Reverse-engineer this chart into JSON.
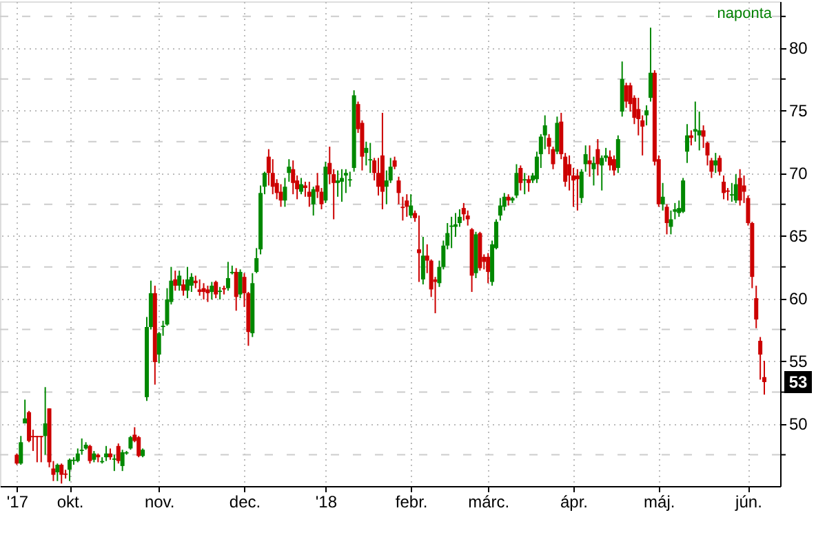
{
  "chart_data": {
    "type": "candlestick",
    "categories": [
      "'17",
      null,
      null,
      null,
      null,
      null,
      null,
      null,
      null,
      null,
      null,
      null,
      null,
      "okt.",
      null,
      null,
      null,
      null,
      null,
      null,
      null,
      null,
      null,
      null,
      null,
      null,
      null,
      null,
      null,
      null,
      null,
      null,
      null,
      null,
      null,
      "nov.",
      null,
      null,
      null,
      null,
      null,
      null,
      null,
      null,
      null,
      null,
      null,
      null,
      null,
      null,
      null,
      null,
      null,
      null,
      null,
      null,
      "dec.",
      null,
      null,
      null,
      null,
      null,
      null,
      null,
      null,
      null,
      null,
      null,
      null,
      null,
      null,
      null,
      null,
      null,
      null,
      null,
      "'18",
      null,
      null,
      null,
      null,
      null,
      null,
      null,
      null,
      null,
      null,
      null,
      null,
      null,
      null,
      null,
      null,
      null,
      null,
      null,
      null,
      "febr.",
      null,
      null,
      null,
      null,
      null,
      null,
      null,
      null,
      null,
      null,
      null,
      null,
      null,
      null,
      null,
      null,
      null,
      null,
      "márc.",
      null,
      null,
      null,
      null,
      null,
      null,
      null,
      null,
      null,
      null,
      null,
      null,
      null,
      null,
      null,
      null,
      null,
      null,
      null,
      null,
      "ápr.",
      null,
      null,
      null,
      null,
      null,
      null,
      null,
      null,
      null,
      null,
      null,
      null,
      null,
      null,
      null,
      null,
      null,
      null,
      null,
      null,
      "máj.",
      null,
      null,
      null,
      null,
      null,
      null,
      null,
      null,
      null,
      null,
      null,
      null,
      null,
      null,
      null,
      null,
      null,
      null,
      null,
      null,
      null,
      "jún.",
      null,
      null,
      null,
      null
    ],
    "ohlc": [
      [
        47.5,
        47.6,
        46.7,
        46.8
      ],
      [
        46.8,
        49.0,
        46.7,
        48.5
      ],
      [
        50.0,
        51.9,
        50.0,
        50.4
      ],
      [
        50.9,
        51.0,
        48.5,
        48.6
      ],
      [
        49.0,
        49.5,
        47.8,
        48.9
      ],
      [
        49.0,
        49.0,
        46.9,
        48.9
      ],
      [
        49.0,
        49.0,
        46.9,
        48.9
      ],
      [
        49.0,
        52.9,
        47.5,
        50.0
      ],
      [
        51.2,
        51.2,
        46.5,
        46.9
      ],
      [
        46.4,
        47.0,
        45.4,
        45.9
      ],
      [
        46.1,
        46.8,
        45.4,
        46.7
      ],
      [
        46.7,
        46.8,
        45.2,
        45.9
      ],
      [
        46.0,
        46.3,
        45.6,
        45.9
      ],
      [
        46.3,
        47.2,
        45.4,
        47.1
      ],
      [
        47.0,
        47.3,
        46.7,
        47.1
      ],
      [
        47.0,
        48.0,
        46.9,
        47.6
      ],
      [
        47.8,
        48.8,
        47.5,
        47.9
      ],
      [
        48.0,
        48.5,
        47.9,
        48.3
      ],
      [
        48.2,
        48.3,
        46.8,
        47.0
      ],
      [
        47.1,
        47.8,
        46.9,
        47.6
      ],
      [
        47.5,
        47.6,
        46.9,
        47.3
      ],
      [
        46.9,
        47.3,
        46.8,
        47.0
      ],
      [
        47.3,
        48.2,
        47.0,
        47.6
      ],
      [
        47.6,
        48.0,
        47.1,
        47.3
      ],
      [
        47.1,
        47.5,
        46.2,
        47.2
      ],
      [
        48.2,
        48.4,
        46.8,
        47.0
      ],
      [
        46.6,
        47.9,
        46.2,
        47.7
      ],
      [
        47.6,
        47.8,
        47.5,
        47.7
      ],
      [
        48.0,
        49.0,
        47.9,
        48.9
      ],
      [
        49.1,
        49.7,
        48.5,
        48.6
      ],
      [
        48.9,
        49.0,
        47.3,
        47.4
      ],
      [
        47.4,
        48.0,
        47.3,
        47.9
      ],
      [
        52.1,
        58.5,
        51.8,
        57.7
      ],
      [
        57.7,
        61.4,
        57.5,
        60.4
      ],
      [
        60.4,
        61.0,
        53.1,
        54.9
      ],
      [
        55.5,
        57.3,
        54.8,
        57.2
      ],
      [
        57.7,
        58.2,
        57.0,
        57.8
      ],
      [
        57.9,
        60.8,
        57.8,
        59.9
      ],
      [
        59.7,
        62.5,
        59.5,
        61.4
      ],
      [
        61.5,
        62.2,
        60.6,
        61.0
      ],
      [
        61.0,
        62.2,
        60.6,
        61.8
      ],
      [
        61.1,
        61.5,
        60.2,
        60.6
      ],
      [
        60.6,
        62.5,
        60.0,
        61.5
      ],
      [
        61.0,
        62.0,
        60.5,
        61.7
      ],
      [
        61.4,
        61.8,
        60.8,
        61.2
      ],
      [
        60.7,
        61.5,
        60.2,
        60.5
      ],
      [
        60.8,
        61.2,
        59.9,
        60.5
      ],
      [
        60.7,
        61.0,
        59.7,
        60.4
      ],
      [
        60.5,
        61.3,
        59.9,
        61.0
      ],
      [
        61.3,
        61.4,
        60.0,
        60.3
      ],
      [
        60.5,
        60.9,
        59.9,
        60.6
      ],
      [
        60.8,
        61.0,
        60.3,
        60.7
      ],
      [
        60.8,
        62.9,
        60.6,
        61.6
      ],
      [
        62.0,
        62.6,
        61.9,
        62.1
      ],
      [
        62.1,
        62.4,
        59.0,
        60.1
      ],
      [
        60.3,
        62.3,
        60.0,
        62.1
      ],
      [
        61.7,
        62.0,
        59.3,
        60.4
      ],
      [
        60.4,
        60.5,
        56.2,
        57.3
      ],
      [
        57.2,
        62.0,
        56.9,
        61.2
      ],
      [
        62.1,
        64.0,
        62.0,
        63.2
      ],
      [
        63.9,
        69.0,
        63.5,
        68.4
      ],
      [
        68.9,
        70.1,
        68.3,
        70.0
      ],
      [
        71.3,
        71.9,
        69.0,
        70.0
      ],
      [
        70.0,
        71.1,
        68.3,
        68.9
      ],
      [
        69.2,
        69.5,
        67.9,
        68.4
      ],
      [
        68.5,
        69.1,
        67.3,
        67.8
      ],
      [
        67.8,
        69.6,
        67.3,
        68.9
      ],
      [
        70.0,
        71.1,
        69.3,
        70.5
      ],
      [
        70.3,
        71.0,
        68.3,
        69.2
      ],
      [
        69.4,
        69.8,
        67.9,
        68.7
      ],
      [
        68.5,
        69.6,
        68.3,
        69.1
      ],
      [
        69.0,
        69.3,
        68.1,
        68.8
      ],
      [
        68.5,
        69.3,
        67.3,
        68.1
      ],
      [
        67.5,
        68.9,
        66.6,
        68.7
      ],
      [
        69.0,
        70.0,
        68.0,
        68.5
      ],
      [
        68.5,
        68.8,
        67.1,
        67.5
      ],
      [
        67.8,
        70.9,
        67.6,
        70.5
      ],
      [
        70.8,
        72.1,
        69.1,
        69.9
      ],
      [
        69.9,
        70.3,
        66.3,
        69.2
      ],
      [
        69.2,
        70.2,
        68.1,
        69.4
      ],
      [
        69.3,
        70.3,
        67.7,
        69.6
      ],
      [
        69.8,
        70.3,
        68.4,
        70.0
      ],
      [
        69.4,
        70.1,
        68.9,
        69.5
      ],
      [
        70.4,
        76.6,
        70.1,
        76.2
      ],
      [
        75.5,
        75.7,
        73.2,
        73.5
      ],
      [
        74.0,
        74.2,
        70.2,
        71.3
      ],
      [
        71.6,
        72.5,
        70.6,
        72.0
      ],
      [
        71.0,
        72.4,
        70.0,
        71.1
      ],
      [
        71.0,
        71.2,
        69.4,
        70.0
      ],
      [
        70.0,
        71.2,
        68.2,
        68.9
      ],
      [
        71.4,
        74.8,
        67.1,
        68.5
      ],
      [
        68.9,
        70.2,
        67.5,
        69.4
      ],
      [
        69.4,
        71.2,
        69.2,
        70.5
      ],
      [
        71.0,
        71.3,
        70.3,
        70.5
      ],
      [
        69.4,
        69.7,
        67.5,
        68.4
      ],
      [
        67.3,
        68.1,
        66.2,
        67.2
      ],
      [
        67.8,
        68.3,
        66.5,
        67.3
      ],
      [
        66.6,
        68.3,
        66.4,
        67.4
      ],
      [
        66.8,
        67.0,
        66.1,
        66.4
      ],
      [
        63.9,
        66.6,
        61.3,
        63.6
      ],
      [
        61.5,
        64.9,
        61.1,
        63.4
      ],
      [
        63.4,
        64.3,
        62.0,
        63.0
      ],
      [
        63.0,
        63.1,
        60.1,
        60.7
      ],
      [
        61.5,
        61.7,
        58.8,
        61.3
      ],
      [
        61.2,
        63.0,
        60.9,
        62.5
      ],
      [
        62.5,
        64.6,
        62.3,
        64.2
      ],
      [
        64.2,
        66.0,
        63.9,
        65.2
      ],
      [
        65.7,
        66.5,
        64.0,
        65.8
      ],
      [
        65.7,
        66.8,
        64.9,
        65.9
      ],
      [
        66.0,
        67.1,
        65.7,
        66.5
      ],
      [
        67.2,
        67.6,
        66.2,
        66.7
      ],
      [
        66.6,
        67.0,
        65.8,
        66.3
      ],
      [
        65.5,
        65.6,
        60.5,
        61.8
      ],
      [
        62.0,
        65.3,
        61.6,
        65.1
      ],
      [
        65.2,
        65.3,
        62.2,
        62.4
      ],
      [
        63.3,
        63.5,
        62.3,
        62.9
      ],
      [
        63.3,
        63.6,
        61.2,
        62.1
      ],
      [
        61.3,
        64.6,
        61.0,
        64.3
      ],
      [
        64.0,
        66.3,
        63.9,
        66.1
      ],
      [
        66.6,
        68.0,
        66.2,
        67.4
      ],
      [
        67.3,
        68.4,
        67.0,
        68.1
      ],
      [
        68.1,
        68.3,
        67.4,
        67.8
      ],
      [
        67.8,
        68.1,
        67.6,
        68.0
      ],
      [
        68.2,
        70.7,
        68.0,
        70.0
      ],
      [
        70.4,
        70.6,
        68.6,
        69.2
      ],
      [
        69.4,
        70.0,
        68.3,
        69.5
      ],
      [
        69.5,
        69.8,
        68.5,
        69.2
      ],
      [
        69.4,
        70.0,
        69.2,
        69.8
      ],
      [
        69.5,
        71.7,
        69.2,
        71.3
      ],
      [
        71.5,
        73.1,
        70.4,
        72.9
      ],
      [
        73.0,
        74.6,
        71.9,
        73.8
      ],
      [
        72.8,
        73.1,
        71.5,
        72.1
      ],
      [
        71.9,
        72.1,
        70.3,
        70.7
      ],
      [
        71.7,
        74.5,
        71.5,
        74.0
      ],
      [
        74.1,
        74.8,
        71.1,
        71.5
      ],
      [
        71.3,
        71.6,
        68.9,
        69.3
      ],
      [
        70.7,
        71.4,
        68.6,
        69.8
      ],
      [
        69.8,
        70.4,
        67.3,
        69.4
      ],
      [
        69.8,
        70.3,
        67.0,
        69.5
      ],
      [
        68.0,
        70.3,
        67.6,
        70.1
      ],
      [
        70.7,
        72.2,
        70.1,
        71.5
      ],
      [
        71.0,
        72.2,
        69.7,
        70.7
      ],
      [
        70.3,
        71.3,
        69.0,
        70.8
      ],
      [
        71.9,
        72.7,
        69.8,
        70.7
      ],
      [
        70.6,
        71.4,
        68.6,
        71.2
      ],
      [
        71.2,
        72.0,
        70.9,
        71.4
      ],
      [
        71.3,
        71.8,
        70.2,
        70.6
      ],
      [
        71.1,
        71.4,
        69.8,
        70.2
      ],
      [
        70.4,
        73.0,
        70.0,
        72.7
      ],
      [
        74.9,
        78.9,
        74.5,
        77.5
      ],
      [
        77.0,
        77.2,
        75.2,
        75.7
      ],
      [
        77.0,
        77.2,
        74.9,
        75.5
      ],
      [
        76.0,
        76.2,
        73.9,
        74.4
      ],
      [
        75.1,
        76.0,
        73.0,
        74.3
      ],
      [
        74.2,
        74.6,
        71.4,
        73.7
      ],
      [
        74.6,
        75.4,
        73.8,
        75.0
      ],
      [
        76.0,
        81.6,
        75.7,
        78.0
      ],
      [
        78.0,
        78.2,
        70.6,
        70.9
      ],
      [
        71.1,
        71.4,
        67.3,
        67.5
      ],
      [
        67.5,
        69.2,
        67.0,
        68.1
      ],
      [
        67.3,
        67.5,
        65.1,
        66.0
      ],
      [
        65.7,
        67.0,
        65.1,
        66.3
      ],
      [
        66.9,
        67.6,
        66.3,
        67.1
      ],
      [
        66.8,
        67.8,
        66.5,
        67.2
      ],
      [
        66.9,
        69.6,
        66.8,
        69.4
      ],
      [
        71.7,
        73.9,
        70.8,
        73.0
      ],
      [
        73.0,
        73.4,
        72.2,
        72.8
      ],
      [
        73.3,
        75.7,
        72.5,
        73.5
      ],
      [
        73.0,
        74.9,
        71.8,
        73.4
      ],
      [
        73.4,
        73.8,
        72.0,
        72.9
      ],
      [
        72.4,
        72.5,
        70.6,
        71.4
      ],
      [
        71.0,
        71.2,
        69.6,
        70.1
      ],
      [
        70.6,
        71.6,
        70.0,
        71.0
      ],
      [
        71.2,
        71.4,
        69.8,
        70.1
      ],
      [
        69.3,
        69.8,
        67.9,
        68.4
      ],
      [
        68.6,
        68.8,
        67.8,
        68.5
      ],
      [
        68.2,
        69.2,
        67.7,
        68.3
      ],
      [
        67.8,
        69.9,
        67.6,
        69.1
      ],
      [
        69.6,
        70.3,
        67.4,
        67.8
      ],
      [
        69.0,
        69.8,
        67.6,
        68.5
      ],
      [
        68.0,
        68.2,
        65.8,
        66.0
      ],
      [
        66.0,
        66.1,
        60.8,
        61.7
      ],
      [
        60.0,
        61.0,
        57.6,
        58.3
      ],
      [
        56.6,
        56.9,
        53.5,
        55.5
      ],
      [
        53.7,
        55.0,
        52.3,
        53.3
      ]
    ],
    "colors": [
      "#cc0000",
      "#008800",
      "#008800",
      "#cc0000",
      "#cc0000",
      "#cc0000",
      "#cc0000",
      "#008800",
      "#cc0000",
      "#cc0000",
      "#008800",
      "#cc0000",
      "#cc0000",
      "#008800",
      "#008800",
      "#008800",
      "#008800",
      "#008800",
      "#cc0000",
      "#008800",
      "#cc0000",
      "#008800",
      "#008800",
      "#cc0000",
      "#008800",
      "#cc0000",
      "#008800",
      "#008800",
      "#008800",
      "#cc0000",
      "#cc0000",
      "#008800",
      "#008800",
      "#008800",
      "#cc0000",
      "#008800",
      "#008800",
      "#008800",
      "#008800",
      "#cc0000",
      "#008800",
      "#cc0000",
      "#008800",
      "#008800",
      "#cc0000",
      "#cc0000",
      "#cc0000",
      "#cc0000",
      "#008800",
      "#cc0000",
      "#008800",
      "#cc0000",
      "#008800",
      "#008800",
      "#cc0000",
      "#008800",
      "#cc0000",
      "#cc0000",
      "#008800",
      "#008800",
      "#008800",
      "#008800",
      "#cc0000",
      "#cc0000",
      "#cc0000",
      "#cc0000",
      "#008800",
      "#008800",
      "#cc0000",
      "#cc0000",
      "#008800",
      "#cc0000",
      "#cc0000",
      "#008800",
      "#cc0000",
      "#cc0000",
      "#008800",
      "#cc0000",
      "#cc0000",
      "#008800",
      "#008800",
      "#008800",
      "#008800",
      "#008800",
      "#cc0000",
      "#cc0000",
      "#008800",
      "#008800",
      "#cc0000",
      "#cc0000",
      "#cc0000",
      "#008800",
      "#008800",
      "#cc0000",
      "#cc0000",
      "#cc0000",
      "#cc0000",
      "#008800",
      "#cc0000",
      "#cc0000",
      "#008800",
      "#cc0000",
      "#cc0000",
      "#cc0000",
      "#008800",
      "#008800",
      "#008800",
      "#008800",
      "#008800",
      "#008800",
      "#cc0000",
      "#cc0000",
      "#cc0000",
      "#008800",
      "#cc0000",
      "#cc0000",
      "#cc0000",
      "#008800",
      "#008800",
      "#008800",
      "#008800",
      "#cc0000",
      "#008800",
      "#008800",
      "#cc0000",
      "#008800",
      "#cc0000",
      "#008800",
      "#008800",
      "#008800",
      "#008800",
      "#cc0000",
      "#cc0000",
      "#008800",
      "#cc0000",
      "#cc0000",
      "#cc0000",
      "#cc0000",
      "#cc0000",
      "#008800",
      "#008800",
      "#cc0000",
      "#008800",
      "#cc0000",
      "#008800",
      "#008800",
      "#cc0000",
      "#cc0000",
      "#008800",
      "#008800",
      "#cc0000",
      "#cc0000",
      "#cc0000",
      "#cc0000",
      "#cc0000",
      "#008800",
      "#008800",
      "#cc0000",
      "#cc0000",
      "#008800",
      "#cc0000",
      "#008800",
      "#008800",
      "#008800",
      "#008800",
      "#008800",
      "#cc0000",
      "#008800",
      "#008800",
      "#cc0000",
      "#cc0000",
      "#cc0000",
      "#008800",
      "#cc0000",
      "#cc0000",
      "#cc0000",
      "#008800",
      "#008800",
      "#cc0000",
      "#cc0000",
      "#cc0000",
      "#cc0000",
      "#cc0000",
      "#cc0000",
      "#cc0000"
    ],
    "ylim": [
      45,
      83.7
    ],
    "yticks": [
      {
        "value": 47.5,
        "label": null
      },
      50,
      {
        "value": 52.5,
        "label": null
      },
      55,
      {
        "value": 57.5,
        "label": null
      },
      60,
      {
        "value": 62.5,
        "label": null
      },
      65,
      {
        "value": 67.5,
        "label": null
      },
      70,
      {
        "value": 72.5,
        "label": null
      },
      75,
      {
        "value": 77.5,
        "label": null
      },
      80,
      {
        "value": 82.5,
        "label": null
      }
    ],
    "grid": true,
    "annotations": [
      "naponta",
      "53"
    ]
  }
}
